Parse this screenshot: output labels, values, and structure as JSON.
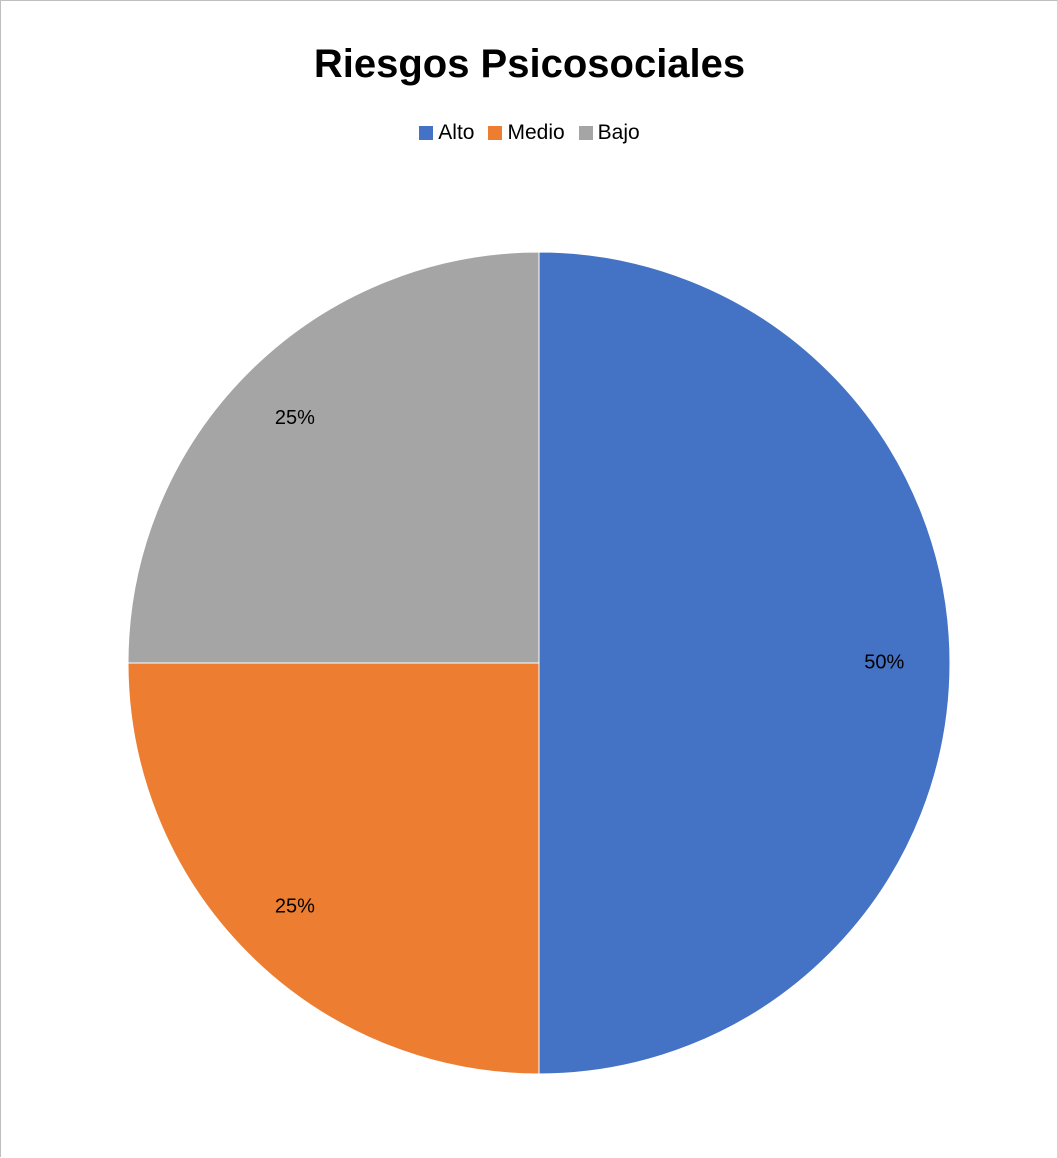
{
  "chart_data": {
    "type": "pie",
    "title": "Riesgos Psicosociales",
    "categories": [
      "Alto",
      "Medio",
      "Bajo"
    ],
    "values": [
      50,
      25,
      25
    ],
    "labels": [
      "50%",
      "25%",
      "25%"
    ],
    "colors": [
      "#4472C4",
      "#ED7D31",
      "#A5A5A5"
    ],
    "legend_position": "top"
  }
}
